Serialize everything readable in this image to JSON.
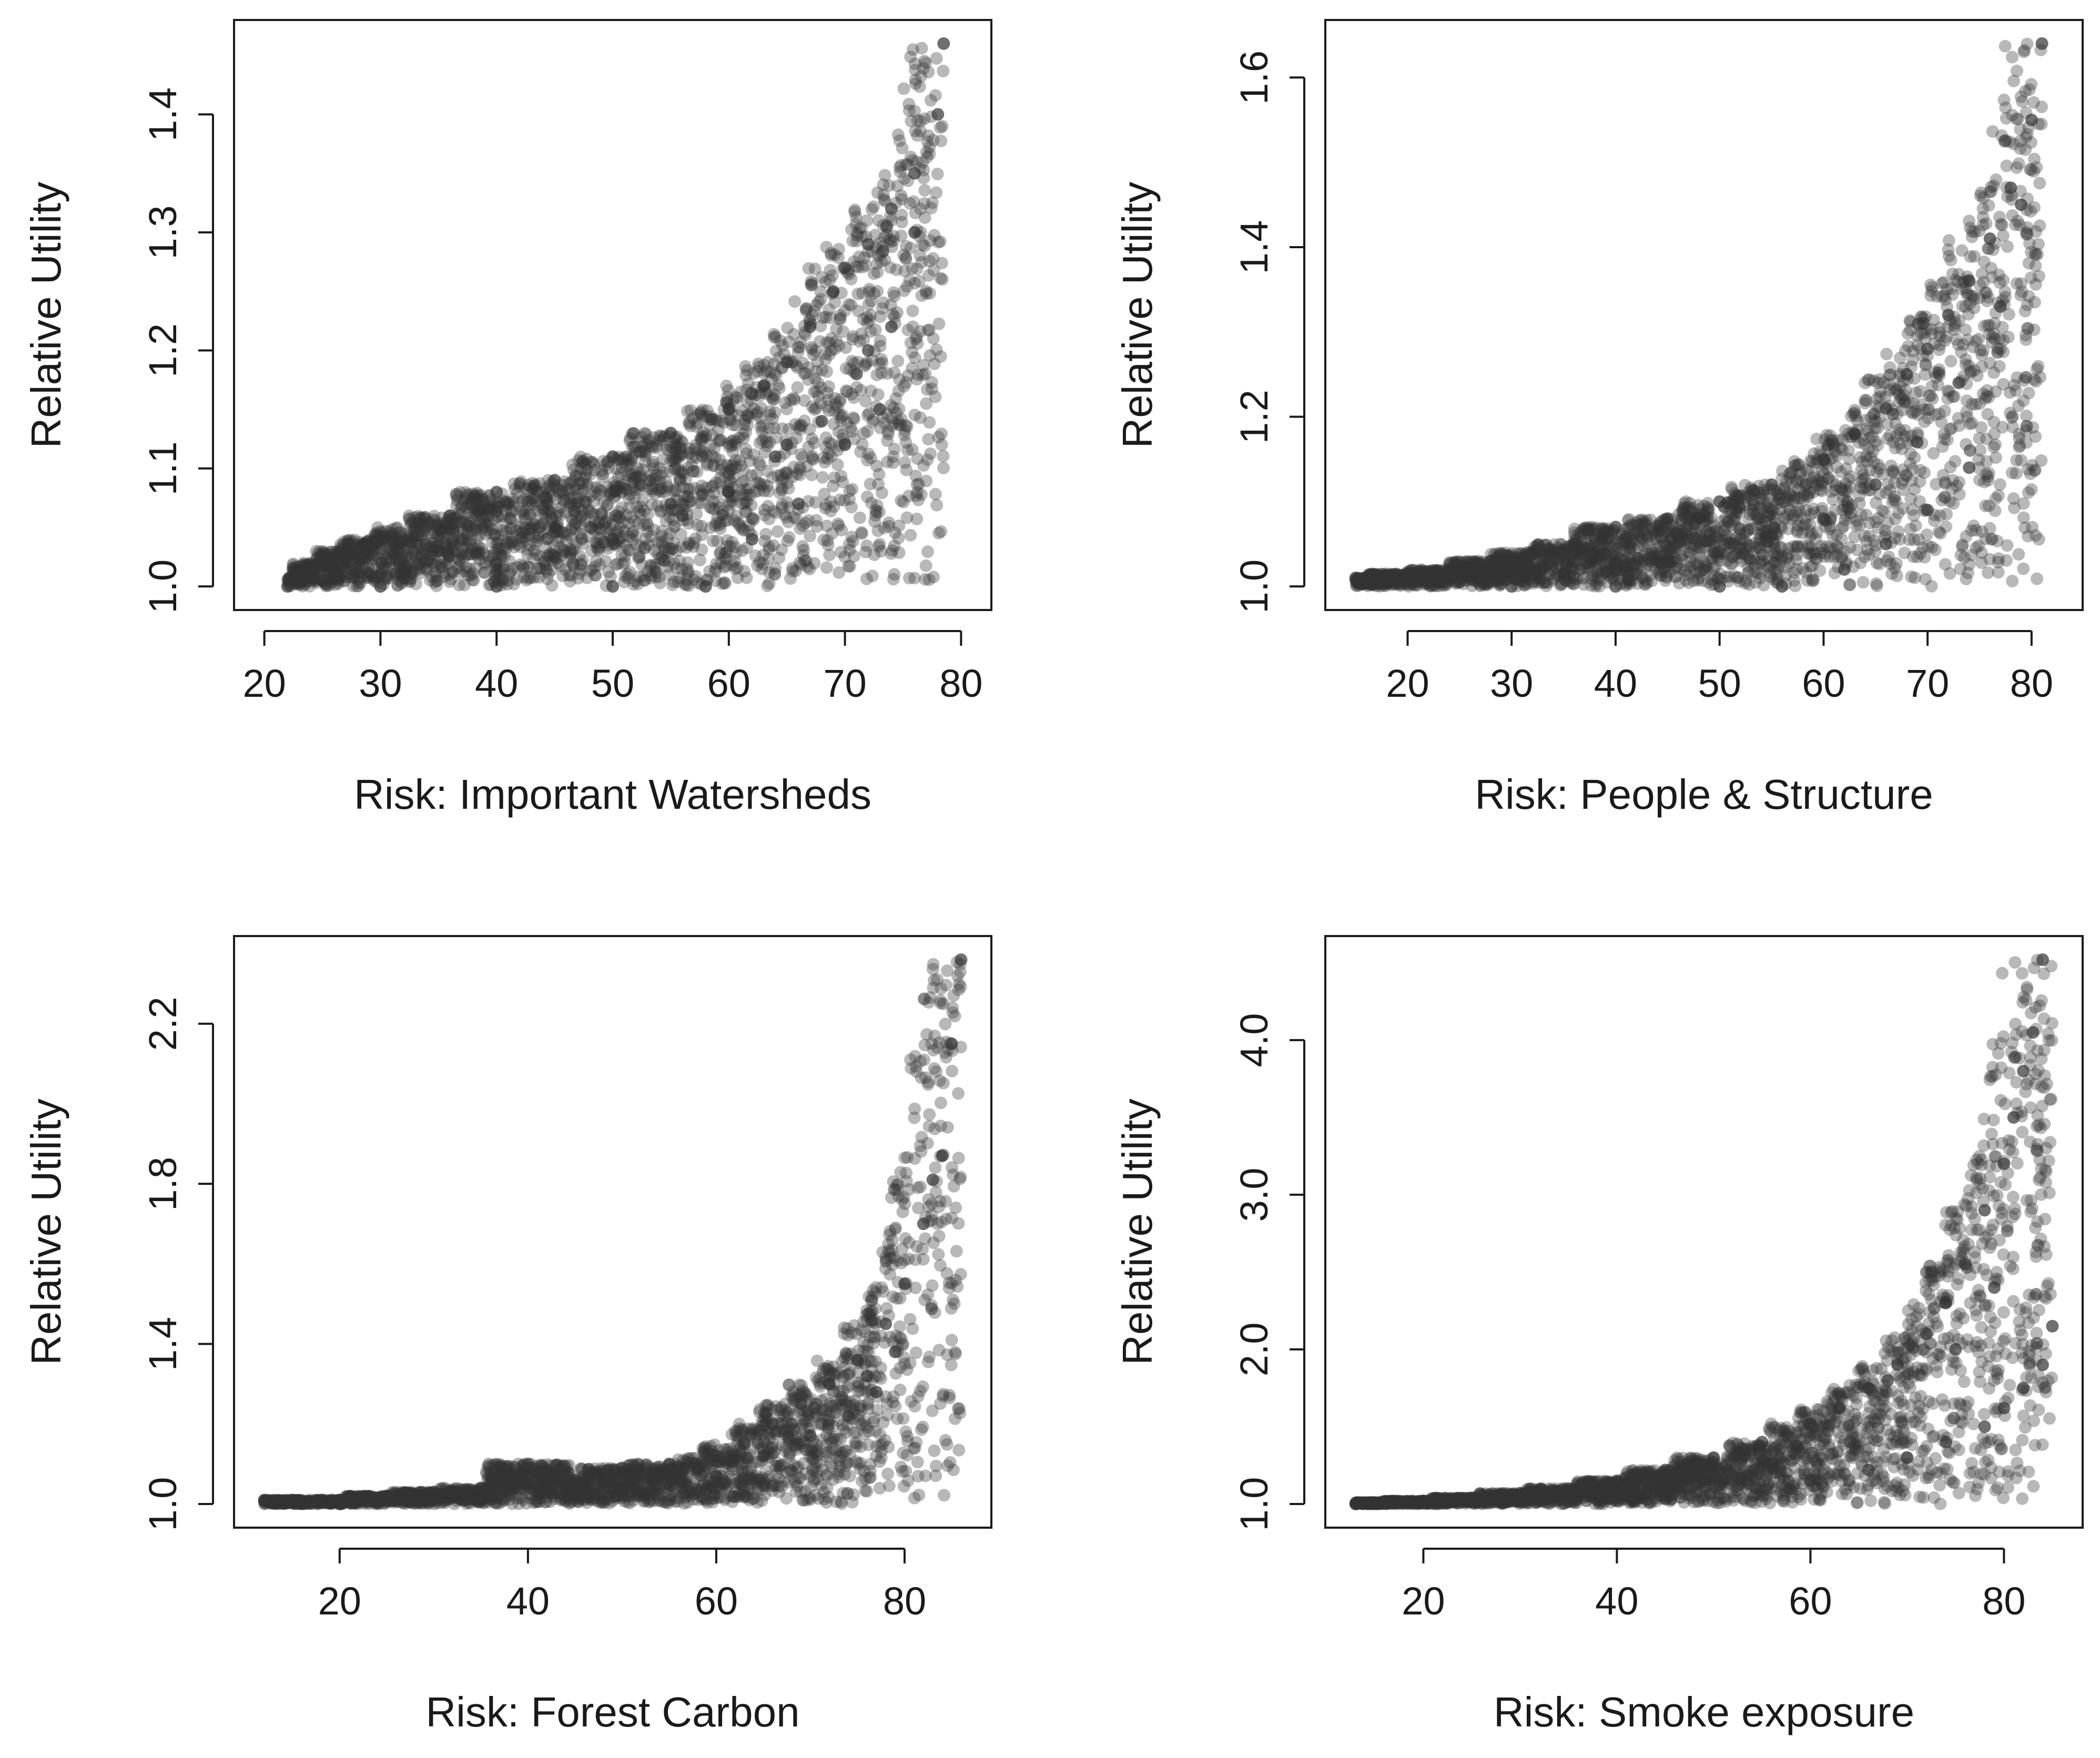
{
  "chart_data": [
    {
      "type": "scatter",
      "title": "",
      "xlabel": "Risk: Important Watersheds",
      "ylabel": "Relative Utility",
      "xlim": [
        20,
        80
      ],
      "ylim": [
        1.0,
        1.46
      ],
      "xticks": [
        20,
        30,
        40,
        50,
        60,
        70,
        80
      ],
      "yticks": [
        1.0,
        1.1,
        1.2,
        1.3,
        1.4
      ],
      "ytick_labels": [
        "1.0",
        "1.1",
        "1.2",
        "1.3",
        "1.4"
      ],
      "series": [
        {
          "name": "points",
          "x": [
            22,
            24,
            26,
            28,
            30,
            33,
            36,
            40,
            45,
            50,
            55,
            60,
            63,
            65,
            67,
            69,
            70,
            72,
            74,
            76,
            78,
            78.5,
            30,
            40,
            50,
            58,
            62,
            66,
            70,
            73,
            25,
            30,
            40,
            50,
            56,
            60,
            64,
            68,
            71,
            74,
            35,
            45,
            55,
            65,
            72,
            76
          ],
          "y": [
            1.0,
            1.01,
            1.02,
            1.03,
            1.04,
            1.05,
            1.06,
            1.08,
            1.09,
            1.11,
            1.13,
            1.15,
            1.17,
            1.19,
            1.22,
            1.25,
            1.27,
            1.29,
            1.32,
            1.35,
            1.4,
            1.46,
            1.0,
            1.0,
            1.0,
            1.0,
            1.04,
            1.07,
            1.12,
            1.15,
            1.005,
            1.01,
            1.02,
            1.04,
            1.06,
            1.08,
            1.11,
            1.14,
            1.18,
            1.22,
            1.03,
            1.05,
            1.07,
            1.12,
            1.2,
            1.3
          ]
        }
      ]
    },
    {
      "type": "scatter",
      "title": "",
      "xlabel": "Risk: People & Structure",
      "ylabel": "Relative Utility",
      "xlim": [
        15,
        82
      ],
      "ylim": [
        1.0,
        1.64
      ],
      "xticks": [
        20,
        30,
        40,
        50,
        60,
        70,
        80
      ],
      "yticks": [
        1.0,
        1.2,
        1.4,
        1.6
      ],
      "ytick_labels": [
        "1.0",
        "1.2",
        "1.4",
        "1.6"
      ],
      "series": [
        {
          "name": "points",
          "x": [
            15,
            18,
            20,
            24,
            28,
            32,
            36,
            40,
            45,
            50,
            55,
            60,
            63,
            66,
            68,
            70,
            72,
            74,
            76,
            78,
            80,
            81,
            30,
            40,
            50,
            56,
            62,
            66,
            70,
            74,
            25,
            35,
            45,
            55,
            60,
            65,
            69,
            73,
            77,
            79
          ],
          "y": [
            1.01,
            1.01,
            1.015,
            1.02,
            1.03,
            1.04,
            1.05,
            1.07,
            1.08,
            1.1,
            1.12,
            1.15,
            1.18,
            1.21,
            1.25,
            1.28,
            1.32,
            1.36,
            1.41,
            1.47,
            1.55,
            1.64,
            1.0,
            1.0,
            1.0,
            1.0,
            1.02,
            1.05,
            1.09,
            1.14,
            1.005,
            1.015,
            1.03,
            1.06,
            1.08,
            1.12,
            1.17,
            1.24,
            1.33,
            1.45
          ]
        }
      ]
    },
    {
      "type": "scatter",
      "title": "",
      "xlabel": "Risk: Forest Carbon",
      "ylabel": "Relative Utility",
      "xlim": [
        12,
        86
      ],
      "ylim": [
        1.0,
        2.36
      ],
      "xticks": [
        20,
        40,
        60,
        80
      ],
      "yticks": [
        1.0,
        1.4,
        1.8,
        2.2
      ],
      "ytick_labels": [
        "1.0",
        "1.4",
        "1.8",
        "2.2"
      ],
      "series": [
        {
          "name": "points",
          "x": [
            12,
            15,
            20,
            25,
            30,
            35,
            40,
            45,
            50,
            55,
            60,
            63,
            66,
            69,
            72,
            75,
            78,
            80,
            82,
            83,
            84,
            85,
            86,
            40,
            50,
            60,
            65,
            70,
            74,
            77,
            79,
            20,
            30,
            45,
            58,
            68,
            76
          ],
          "y": [
            1.01,
            1.01,
            1.01,
            1.02,
            1.03,
            1.04,
            1.05,
            1.06,
            1.08,
            1.1,
            1.12,
            1.15,
            1.2,
            1.25,
            1.3,
            1.36,
            1.45,
            1.55,
            1.7,
            1.81,
            1.87,
            2.15,
            2.36,
            1.1,
            1.09,
            1.07,
            1.12,
            1.17,
            1.22,
            1.28,
            1.38,
            1.0,
            1.015,
            1.04,
            1.09,
            1.2,
            1.32
          ]
        }
      ]
    },
    {
      "type": "scatter",
      "title": "",
      "xlabel": "Risk: Smoke exposure",
      "ylabel": "Relative Utility",
      "xlim": [
        13,
        85
      ],
      "ylim": [
        1.0,
        4.52
      ],
      "xticks": [
        20,
        40,
        60,
        80
      ],
      "yticks": [
        1.0,
        2.0,
        3.0,
        4.0
      ],
      "ytick_labels": [
        "1.0",
        "2.0",
        "3.0",
        "4.0"
      ],
      "series": [
        {
          "name": "points",
          "x": [
            13,
            16,
            20,
            25,
            30,
            35,
            40,
            45,
            50,
            55,
            60,
            63,
            66,
            69,
            72,
            74,
            76,
            78,
            80,
            81,
            82,
            83,
            84,
            85,
            60,
            66,
            70,
            74,
            78,
            80,
            82,
            84,
            30,
            45,
            55,
            68,
            75,
            79
          ],
          "y": [
            1.0,
            1.01,
            1.02,
            1.04,
            1.07,
            1.1,
            1.15,
            1.22,
            1.3,
            1.4,
            1.52,
            1.62,
            1.75,
            1.9,
            2.1,
            2.3,
            2.55,
            2.9,
            3.2,
            3.5,
            3.8,
            4.05,
            4.52,
            2.15,
            1.15,
            1.22,
            1.3,
            1.4,
            1.5,
            1.62,
            1.75,
            1.9,
            1.03,
            1.12,
            1.25,
            1.8,
            2.0,
            2.4
          ]
        }
      ]
    }
  ]
}
